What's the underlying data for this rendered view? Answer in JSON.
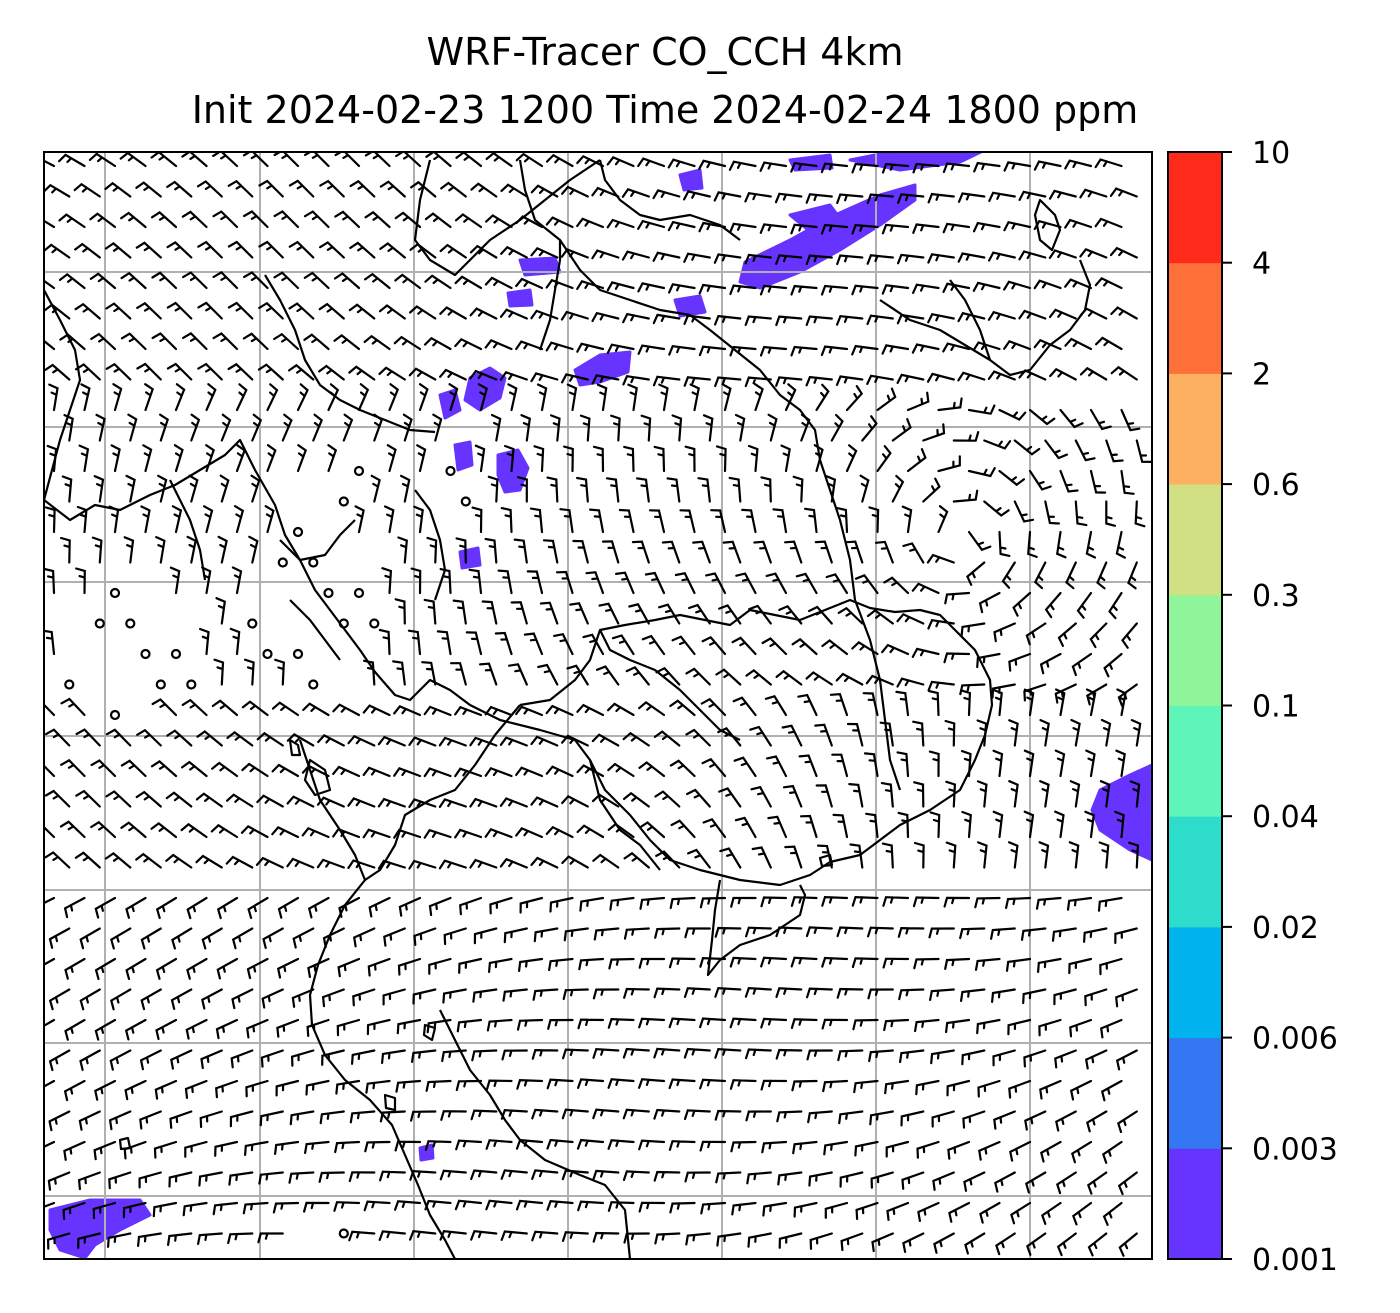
{
  "title": {
    "line1": "WRF-Tracer CO_CCH 4km",
    "line2": "Init 2024-02-23 1200 Time 2024-02-24 1800 ppm"
  },
  "colorbar": {
    "levels": [
      "0.001",
      "0.003",
      "0.006",
      "0.02",
      "0.04",
      "0.1",
      "0.3",
      "0.6",
      "2",
      "4",
      "10"
    ],
    "colors": [
      "#6633ff",
      "#3377f2",
      "#00b2ee",
      "#2edccc",
      "#5ef5b8",
      "#8ef59a",
      "#d2e084",
      "#fcb060",
      "#ff7038",
      "#ff2a1a"
    ]
  },
  "map": {
    "tracer_fill_color": "#6633ff",
    "coastline_color": "#000000",
    "gridline_color": "#b0b0b0",
    "wind_barb_color": "#000000"
  }
}
